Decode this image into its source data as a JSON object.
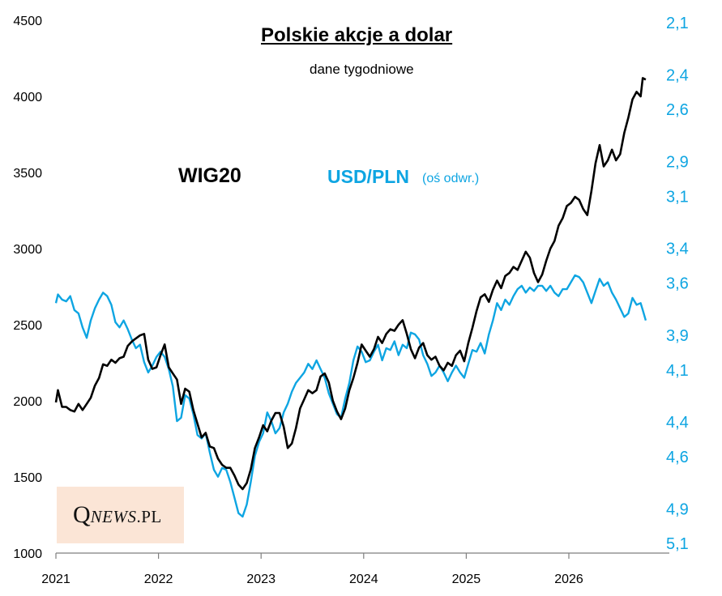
{
  "chart_data": {
    "type": "line",
    "title": "Polskie akcje a dolar",
    "subtitle": "dane tygodniowe",
    "x_ticks": [
      "2021",
      "2022",
      "2023",
      "2024",
      "2025",
      "2026"
    ],
    "xlim": [
      2021,
      2027.0
    ],
    "y_left": {
      "ticks": [
        "1000",
        "1500",
        "2000",
        "2500",
        "3000",
        "3500",
        "4000",
        "4500"
      ],
      "lim": [
        1000,
        4500
      ]
    },
    "y_right": {
      "ticks": [
        "2,1",
        "2,4",
        "2,6",
        "2,9",
        "3,1",
        "3,4",
        "3,6",
        "3,9",
        "4,1",
        "4,4",
        "4,6",
        "4,9",
        "5,1"
      ],
      "inverted": true,
      "lim": [
        2.1,
        5.3
      ]
    },
    "grid": false,
    "series": [
      {
        "name": "WIG20",
        "axis": "left",
        "color": "#000000",
        "points": [
          [
            2021.0,
            1990
          ],
          [
            2021.02,
            2070
          ],
          [
            2021.06,
            1960
          ],
          [
            2021.1,
            1960
          ],
          [
            2021.14,
            1940
          ],
          [
            2021.18,
            1930
          ],
          [
            2021.22,
            1980
          ],
          [
            2021.26,
            1940
          ],
          [
            2021.3,
            1980
          ],
          [
            2021.34,
            2020
          ],
          [
            2021.38,
            2100
          ],
          [
            2021.42,
            2150
          ],
          [
            2021.46,
            2240
          ],
          [
            2021.5,
            2230
          ],
          [
            2021.54,
            2270
          ],
          [
            2021.58,
            2250
          ],
          [
            2021.62,
            2280
          ],
          [
            2021.66,
            2290
          ],
          [
            2021.7,
            2360
          ],
          [
            2021.74,
            2390
          ],
          [
            2021.78,
            2410
          ],
          [
            2021.82,
            2430
          ],
          [
            2021.86,
            2440
          ],
          [
            2021.9,
            2270
          ],
          [
            2021.94,
            2210
          ],
          [
            2021.98,
            2220
          ],
          [
            2022.02,
            2300
          ],
          [
            2022.06,
            2370
          ],
          [
            2022.1,
            2220
          ],
          [
            2022.14,
            2180
          ],
          [
            2022.18,
            2140
          ],
          [
            2022.22,
            1980
          ],
          [
            2022.26,
            2080
          ],
          [
            2022.3,
            2060
          ],
          [
            2022.34,
            1940
          ],
          [
            2022.38,
            1850
          ],
          [
            2022.42,
            1760
          ],
          [
            2022.46,
            1790
          ],
          [
            2022.5,
            1700
          ],
          [
            2022.54,
            1690
          ],
          [
            2022.58,
            1620
          ],
          [
            2022.62,
            1580
          ],
          [
            2022.66,
            1560
          ],
          [
            2022.7,
            1560
          ],
          [
            2022.74,
            1510
          ],
          [
            2022.78,
            1450
          ],
          [
            2022.82,
            1420
          ],
          [
            2022.86,
            1460
          ],
          [
            2022.9,
            1550
          ],
          [
            2022.94,
            1690
          ],
          [
            2022.98,
            1760
          ],
          [
            2023.02,
            1840
          ],
          [
            2023.06,
            1800
          ],
          [
            2023.1,
            1870
          ],
          [
            2023.14,
            1920
          ],
          [
            2023.18,
            1920
          ],
          [
            2023.22,
            1830
          ],
          [
            2023.26,
            1690
          ],
          [
            2023.3,
            1720
          ],
          [
            2023.34,
            1820
          ],
          [
            2023.38,
            1950
          ],
          [
            2023.42,
            2010
          ],
          [
            2023.46,
            2070
          ],
          [
            2023.5,
            2050
          ],
          [
            2023.54,
            2070
          ],
          [
            2023.58,
            2160
          ],
          [
            2023.62,
            2180
          ],
          [
            2023.66,
            2120
          ],
          [
            2023.7,
            2000
          ],
          [
            2023.74,
            1930
          ],
          [
            2023.78,
            1880
          ],
          [
            2023.82,
            1950
          ],
          [
            2023.86,
            2070
          ],
          [
            2023.9,
            2150
          ],
          [
            2023.94,
            2250
          ],
          [
            2023.98,
            2370
          ],
          [
            2024.02,
            2330
          ],
          [
            2024.06,
            2290
          ],
          [
            2024.1,
            2340
          ],
          [
            2024.14,
            2420
          ],
          [
            2024.18,
            2380
          ],
          [
            2024.22,
            2440
          ],
          [
            2024.26,
            2470
          ],
          [
            2024.3,
            2460
          ],
          [
            2024.34,
            2500
          ],
          [
            2024.38,
            2530
          ],
          [
            2024.42,
            2440
          ],
          [
            2024.46,
            2340
          ],
          [
            2024.5,
            2280
          ],
          [
            2024.54,
            2350
          ],
          [
            2024.58,
            2380
          ],
          [
            2024.62,
            2300
          ],
          [
            2024.66,
            2270
          ],
          [
            2024.7,
            2290
          ],
          [
            2024.74,
            2230
          ],
          [
            2024.78,
            2200
          ],
          [
            2024.82,
            2250
          ],
          [
            2024.86,
            2230
          ],
          [
            2024.9,
            2300
          ],
          [
            2024.94,
            2330
          ],
          [
            2024.98,
            2260
          ],
          [
            2025.02,
            2380
          ],
          [
            2025.06,
            2480
          ],
          [
            2025.1,
            2590
          ],
          [
            2025.14,
            2680
          ],
          [
            2025.18,
            2700
          ],
          [
            2025.22,
            2650
          ],
          [
            2025.26,
            2730
          ],
          [
            2025.3,
            2790
          ],
          [
            2025.34,
            2740
          ],
          [
            2025.38,
            2820
          ],
          [
            2025.42,
            2840
          ],
          [
            2025.46,
            2880
          ],
          [
            2025.5,
            2860
          ],
          [
            2025.54,
            2920
          ],
          [
            2025.58,
            2980
          ],
          [
            2025.62,
            2940
          ],
          [
            2025.66,
            2840
          ],
          [
            2025.7,
            2780
          ],
          [
            2025.74,
            2830
          ],
          [
            2025.78,
            2920
          ],
          [
            2025.82,
            3000
          ],
          [
            2025.86,
            3050
          ],
          [
            2025.9,
            3150
          ],
          [
            2025.94,
            3200
          ],
          [
            2025.98,
            3280
          ],
          [
            2026.02,
            3300
          ],
          [
            2026.06,
            3340
          ],
          [
            2026.1,
            3320
          ],
          [
            2026.14,
            3260
          ],
          [
            2026.18,
            3220
          ],
          [
            2026.22,
            3380
          ],
          [
            2026.26,
            3560
          ],
          [
            2026.3,
            3680
          ],
          [
            2026.34,
            3540
          ],
          [
            2026.38,
            3580
          ],
          [
            2026.42,
            3650
          ],
          [
            2026.46,
            3580
          ],
          [
            2026.5,
            3620
          ],
          [
            2026.54,
            3760
          ],
          [
            2026.58,
            3860
          ],
          [
            2026.62,
            3980
          ],
          [
            2026.66,
            4030
          ],
          [
            2026.7,
            4000
          ],
          [
            2026.72,
            4120
          ],
          [
            2026.75,
            4110
          ]
        ]
      },
      {
        "name": "USD/PLN",
        "note": "(oś odwr.)",
        "axis": "right",
        "color": "#0ea5e2",
        "points": [
          [
            2021.0,
            3.72
          ],
          [
            2021.02,
            3.67
          ],
          [
            2021.06,
            3.7
          ],
          [
            2021.1,
            3.71
          ],
          [
            2021.14,
            3.68
          ],
          [
            2021.18,
            3.76
          ],
          [
            2021.22,
            3.78
          ],
          [
            2021.26,
            3.86
          ],
          [
            2021.3,
            3.92
          ],
          [
            2021.34,
            3.82
          ],
          [
            2021.38,
            3.75
          ],
          [
            2021.42,
            3.7
          ],
          [
            2021.46,
            3.66
          ],
          [
            2021.5,
            3.68
          ],
          [
            2021.54,
            3.73
          ],
          [
            2021.58,
            3.83
          ],
          [
            2021.62,
            3.86
          ],
          [
            2021.66,
            3.82
          ],
          [
            2021.7,
            3.87
          ],
          [
            2021.74,
            3.93
          ],
          [
            2021.78,
            3.98
          ],
          [
            2021.82,
            3.96
          ],
          [
            2021.86,
            4.06
          ],
          [
            2021.9,
            4.12
          ],
          [
            2021.94,
            4.08
          ],
          [
            2021.98,
            4.03
          ],
          [
            2022.02,
            4.0
          ],
          [
            2022.06,
            4.03
          ],
          [
            2022.1,
            4.1
          ],
          [
            2022.14,
            4.2
          ],
          [
            2022.18,
            4.4
          ],
          [
            2022.22,
            4.38
          ],
          [
            2022.26,
            4.25
          ],
          [
            2022.3,
            4.27
          ],
          [
            2022.34,
            4.36
          ],
          [
            2022.38,
            4.48
          ],
          [
            2022.42,
            4.5
          ],
          [
            2022.46,
            4.47
          ],
          [
            2022.5,
            4.58
          ],
          [
            2022.54,
            4.68
          ],
          [
            2022.58,
            4.72
          ],
          [
            2022.62,
            4.67
          ],
          [
            2022.66,
            4.68
          ],
          [
            2022.7,
            4.75
          ],
          [
            2022.74,
            4.84
          ],
          [
            2022.78,
            4.93
          ],
          [
            2022.82,
            4.95
          ],
          [
            2022.86,
            4.88
          ],
          [
            2022.9,
            4.75
          ],
          [
            2022.94,
            4.6
          ],
          [
            2022.98,
            4.52
          ],
          [
            2023.02,
            4.47
          ],
          [
            2023.06,
            4.35
          ],
          [
            2023.1,
            4.4
          ],
          [
            2023.14,
            4.47
          ],
          [
            2023.18,
            4.44
          ],
          [
            2023.22,
            4.35
          ],
          [
            2023.26,
            4.3
          ],
          [
            2023.3,
            4.23
          ],
          [
            2023.34,
            4.18
          ],
          [
            2023.38,
            4.15
          ],
          [
            2023.42,
            4.12
          ],
          [
            2023.46,
            4.07
          ],
          [
            2023.5,
            4.1
          ],
          [
            2023.54,
            4.05
          ],
          [
            2023.58,
            4.1
          ],
          [
            2023.62,
            4.15
          ],
          [
            2023.66,
            4.24
          ],
          [
            2023.7,
            4.3
          ],
          [
            2023.74,
            4.36
          ],
          [
            2023.78,
            4.38
          ],
          [
            2023.82,
            4.27
          ],
          [
            2023.86,
            4.18
          ],
          [
            2023.9,
            4.05
          ],
          [
            2023.94,
            3.97
          ],
          [
            2023.98,
            4.0
          ],
          [
            2024.02,
            4.06
          ],
          [
            2024.06,
            4.05
          ],
          [
            2024.1,
            4.0
          ],
          [
            2024.14,
            3.96
          ],
          [
            2024.18,
            4.05
          ],
          [
            2024.22,
            3.98
          ],
          [
            2024.26,
            3.99
          ],
          [
            2024.3,
            3.94
          ],
          [
            2024.34,
            4.02
          ],
          [
            2024.38,
            3.96
          ],
          [
            2024.42,
            3.98
          ],
          [
            2024.46,
            3.89
          ],
          [
            2024.5,
            3.9
          ],
          [
            2024.54,
            3.93
          ],
          [
            2024.58,
            4.02
          ],
          [
            2024.62,
            4.07
          ],
          [
            2024.66,
            4.14
          ],
          [
            2024.7,
            4.12
          ],
          [
            2024.74,
            4.08
          ],
          [
            2024.78,
            4.12
          ],
          [
            2024.82,
            4.17
          ],
          [
            2024.86,
            4.12
          ],
          [
            2024.9,
            4.08
          ],
          [
            2024.94,
            4.12
          ],
          [
            2024.98,
            4.15
          ],
          [
            2025.02,
            4.07
          ],
          [
            2025.06,
            3.99
          ],
          [
            2025.1,
            4.0
          ],
          [
            2025.14,
            3.95
          ],
          [
            2025.18,
            4.01
          ],
          [
            2025.22,
            3.9
          ],
          [
            2025.26,
            3.82
          ],
          [
            2025.3,
            3.72
          ],
          [
            2025.34,
            3.76
          ],
          [
            2025.38,
            3.7
          ],
          [
            2025.42,
            3.73
          ],
          [
            2025.46,
            3.68
          ],
          [
            2025.5,
            3.64
          ],
          [
            2025.54,
            3.62
          ],
          [
            2025.58,
            3.66
          ],
          [
            2025.62,
            3.63
          ],
          [
            2025.66,
            3.65
          ],
          [
            2025.7,
            3.62
          ],
          [
            2025.74,
            3.62
          ],
          [
            2025.78,
            3.65
          ],
          [
            2025.82,
            3.62
          ],
          [
            2025.86,
            3.66
          ],
          [
            2025.9,
            3.68
          ],
          [
            2025.94,
            3.64
          ],
          [
            2025.98,
            3.64
          ],
          [
            2026.02,
            3.6
          ],
          [
            2026.06,
            3.56
          ],
          [
            2026.1,
            3.57
          ],
          [
            2026.14,
            3.6
          ],
          [
            2026.18,
            3.66
          ],
          [
            2026.22,
            3.72
          ],
          [
            2026.26,
            3.65
          ],
          [
            2026.3,
            3.58
          ],
          [
            2026.34,
            3.62
          ],
          [
            2026.38,
            3.6
          ],
          [
            2026.42,
            3.66
          ],
          [
            2026.46,
            3.7
          ],
          [
            2026.5,
            3.75
          ],
          [
            2026.54,
            3.8
          ],
          [
            2026.58,
            3.78
          ],
          [
            2026.62,
            3.69
          ],
          [
            2026.66,
            3.73
          ],
          [
            2026.7,
            3.72
          ],
          [
            2026.72,
            3.76
          ],
          [
            2026.75,
            3.82
          ]
        ]
      }
    ]
  },
  "labels": {
    "wig": "WIG20",
    "usd": "USD/PLN",
    "usd_note": "(oś odwr.)"
  },
  "logo": {
    "q": "Q",
    "news": "NEWS",
    "pl": ".PL"
  },
  "colors": {
    "wig": "#000000",
    "usd": "#0ea5e2",
    "axis": "#7f7f7f",
    "logo_bg": "#fbe5d6"
  }
}
